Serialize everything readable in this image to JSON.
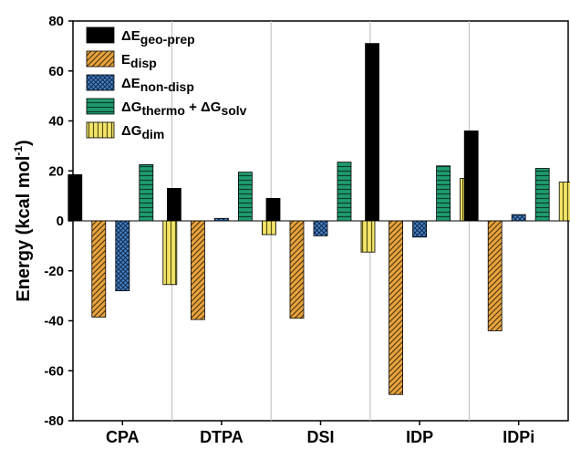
{
  "chart_data": {
    "type": "bar",
    "categories": [
      "CPA",
      "DTPA",
      "DSI",
      "IDP",
      "IDPi"
    ],
    "series": [
      {
        "name": "ΔEgeo-prep",
        "label_main": "ΔE",
        "label_sub": "geo-prep",
        "fill": "#000000",
        "pattern": "solid",
        "values": [
          18.5,
          13,
          9,
          71,
          36
        ]
      },
      {
        "name": "Edisp",
        "label_main": "E",
        "label_sub": "disp",
        "fill": "#e8a33d",
        "pattern": "diag",
        "values": [
          -38.5,
          -39.5,
          -39,
          -69.5,
          -44
        ]
      },
      {
        "name": "ΔEnon-disp",
        "label_main": "ΔE",
        "label_sub": "non-disp",
        "fill": "#4a84c4",
        "pattern": "cross",
        "values": [
          -28,
          1,
          -6,
          -6.5,
          2.5
        ]
      },
      {
        "name": "ΔGthermo + ΔGsolv",
        "label_main": "ΔG",
        "label_sub": "thermo",
        "label_main2": " + ΔG",
        "label_sub2": "solv",
        "fill": "#1f9b6e",
        "pattern": "hlines",
        "values": [
          22.5,
          19.5,
          23.5,
          22,
          21
        ]
      },
      {
        "name": "ΔGdim",
        "label_main": "ΔG",
        "label_sub": "dim",
        "fill": "#f2e56a",
        "pattern": "vlines",
        "values": [
          -25.5,
          -5.5,
          -12.5,
          17,
          15.5
        ]
      }
    ],
    "ylabel_main": "Energy (kcal mol",
    "ylabel_sup": "-1",
    "ylabel_end": ")",
    "ylim": [
      -80,
      80
    ],
    "yticks": [
      "-80",
      "-60",
      "-40",
      "-20",
      "0",
      "20",
      "40",
      "60",
      "80"
    ],
    "legend_position": "top-left"
  }
}
